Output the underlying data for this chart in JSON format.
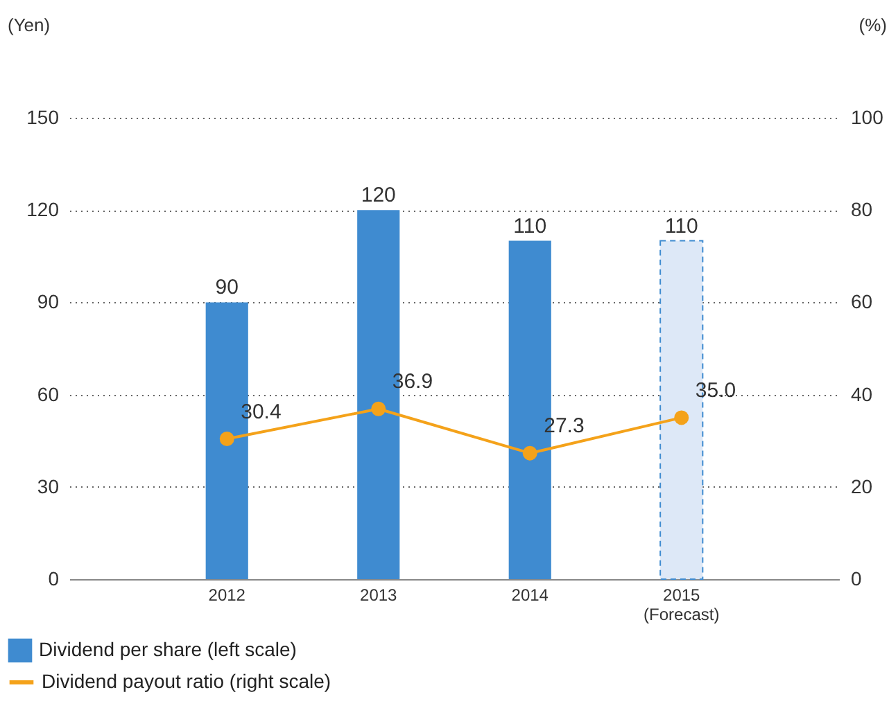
{
  "chart_data": {
    "type": "bar",
    "categories": [
      "2012",
      "2013",
      "2014",
      "2015 (Forecast)"
    ],
    "series": [
      {
        "name": "Dividend per share (left scale)",
        "color": "#3f8bd0",
        "colors": [
          "#3f8bd0",
          "#3f8bd0",
          "#3f8bd0",
          "#dde8f7"
        ],
        "values": [
          90,
          120,
          110,
          110
        ],
        "value_labels": [
          "90",
          "120",
          "110",
          "110"
        ]
      },
      {
        "name": "Dividend payout ratio (right scale)",
        "type": "line",
        "axis": "y2",
        "color": "#f4a21a",
        "values": [
          30.4,
          36.9,
          27.3,
          35.0
        ],
        "value_labels": [
          "30.4",
          "36.9",
          "27.3",
          "35.0"
        ]
      }
    ],
    "ylabel": "(Yen)",
    "y2label": "(%)",
    "ylim": [
      0,
      150
    ],
    "yticks": [
      0,
      30,
      60,
      90,
      120,
      150
    ],
    "y2lim": [
      0,
      100
    ],
    "y2ticks": [
      0,
      20,
      40,
      60,
      80,
      100
    ],
    "grid": "y",
    "legend": "bottom left",
    "marker": "circle",
    "line_style": "solid"
  }
}
